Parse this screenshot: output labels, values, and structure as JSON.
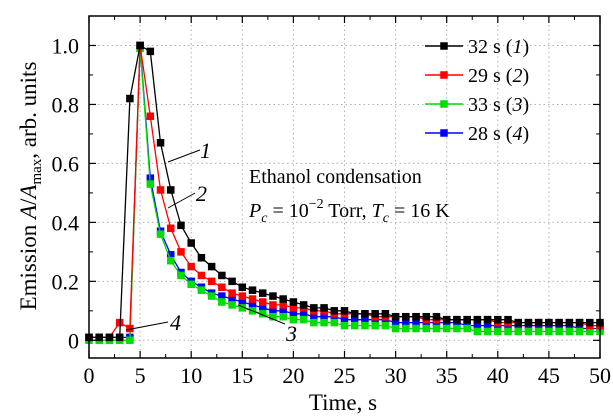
{
  "chart_data": {
    "type": "line",
    "xlabel": "Time, s",
    "ylabel_parts": {
      "prefix": "Emission ",
      "A": "A",
      "slash": "/",
      "A2": "A",
      "sub": "max",
      "suffix": ", arb. units"
    },
    "xlim": [
      0,
      50
    ],
    "ylim": [
      -0.06,
      1.1
    ],
    "xticks": [
      "0",
      "5",
      "10",
      "15",
      "20",
      "25",
      "30",
      "35",
      "40",
      "45",
      "50"
    ],
    "yticks": [
      "0",
      "0.2",
      "0.4",
      "0.6",
      "0.8",
      "1.0"
    ],
    "grid": true,
    "legend_position": "top-right",
    "series": [
      {
        "name": "32 s",
        "tag": "1",
        "color": "#000000",
        "x": [
          0,
          1,
          2,
          3,
          4,
          5,
          6,
          7,
          8,
          9,
          10,
          11,
          12,
          13,
          14,
          15,
          16,
          17,
          18,
          19,
          20,
          21,
          22,
          23,
          24,
          25,
          26,
          27,
          28,
          29,
          30,
          31,
          32,
          33,
          34,
          35,
          36,
          37,
          38,
          39,
          40,
          41,
          42,
          43,
          44,
          45,
          46,
          47,
          48,
          49,
          50
        ],
        "y": [
          0.01,
          0.01,
          0.01,
          0.01,
          0.82,
          1.0,
          0.98,
          0.67,
          0.51,
          0.39,
          0.33,
          0.28,
          0.25,
          0.22,
          0.2,
          0.18,
          0.17,
          0.16,
          0.15,
          0.14,
          0.13,
          0.12,
          0.11,
          0.11,
          0.1,
          0.1,
          0.09,
          0.09,
          0.09,
          0.09,
          0.08,
          0.08,
          0.08,
          0.08,
          0.08,
          0.07,
          0.07,
          0.07,
          0.07,
          0.07,
          0.07,
          0.07,
          0.06,
          0.06,
          0.06,
          0.06,
          0.06,
          0.06,
          0.06,
          0.06,
          0.06
        ]
      },
      {
        "name": "29 s",
        "tag": "2",
        "color": "#ff0000",
        "x": [
          0,
          1,
          2,
          3,
          4,
          5,
          6,
          7,
          8,
          9,
          10,
          11,
          12,
          13,
          14,
          15,
          16,
          17,
          18,
          19,
          20,
          21,
          22,
          23,
          24,
          25,
          26,
          27,
          28,
          29,
          30,
          31,
          32,
          33,
          34,
          35,
          36,
          37,
          38,
          39,
          40,
          41,
          42,
          43,
          44,
          45,
          46,
          47,
          48,
          49,
          50
        ],
        "y": [
          0.01,
          0.01,
          0.01,
          0.06,
          0.04,
          1.0,
          0.76,
          0.51,
          0.38,
          0.3,
          0.25,
          0.22,
          0.2,
          0.18,
          0.16,
          0.15,
          0.14,
          0.13,
          0.12,
          0.12,
          0.11,
          0.11,
          0.1,
          0.1,
          0.09,
          0.09,
          0.09,
          0.09,
          0.08,
          0.08,
          0.08,
          0.08,
          0.08,
          0.07,
          0.07,
          0.07,
          0.07,
          0.07,
          0.07,
          0.07,
          0.06,
          0.06,
          0.06,
          0.06,
          0.06,
          0.06,
          0.06,
          0.06,
          0.06,
          0.05,
          0.05
        ]
      },
      {
        "name": "33 s",
        "tag": "3",
        "color": "#00dd00",
        "x": [
          0,
          1,
          2,
          3,
          4,
          5,
          6,
          7,
          8,
          9,
          10,
          11,
          12,
          13,
          14,
          15,
          16,
          17,
          18,
          19,
          20,
          21,
          22,
          23,
          24,
          25,
          26,
          27,
          28,
          29,
          30,
          31,
          32,
          33,
          34,
          35,
          36,
          37,
          38,
          39,
          40,
          41,
          42,
          43,
          44,
          45,
          46,
          47,
          48,
          49,
          50
        ],
        "y": [
          0.0,
          0.0,
          0.0,
          0.0,
          0.0,
          0.99,
          0.53,
          0.36,
          0.27,
          0.22,
          0.19,
          0.17,
          0.15,
          0.13,
          0.12,
          0.11,
          0.1,
          0.09,
          0.08,
          0.08,
          0.07,
          0.07,
          0.06,
          0.06,
          0.06,
          0.05,
          0.05,
          0.05,
          0.05,
          0.05,
          0.04,
          0.04,
          0.04,
          0.04,
          0.04,
          0.04,
          0.04,
          0.04,
          0.03,
          0.03,
          0.03,
          0.03,
          0.03,
          0.03,
          0.03,
          0.03,
          0.03,
          0.03,
          0.03,
          0.03,
          0.03
        ]
      },
      {
        "name": "28 s",
        "tag": "4",
        "color": "#0000ff",
        "x": [
          0,
          1,
          2,
          3,
          4,
          5,
          6,
          7,
          8,
          9,
          10,
          11,
          12,
          13,
          14,
          15,
          16,
          17,
          18,
          19,
          20,
          21,
          22,
          23,
          24,
          25,
          26,
          27,
          28,
          29,
          30,
          31,
          32,
          33,
          34,
          35,
          36,
          37,
          38,
          39,
          40,
          41,
          42,
          43,
          44,
          45,
          46,
          47,
          48,
          49,
          50
        ],
        "y": [
          0.01,
          0.01,
          0.01,
          0.01,
          0.01,
          1.0,
          0.55,
          0.37,
          0.29,
          0.23,
          0.2,
          0.18,
          0.16,
          0.15,
          0.14,
          0.13,
          0.12,
          0.11,
          0.1,
          0.1,
          0.09,
          0.09,
          0.08,
          0.08,
          0.08,
          0.07,
          0.07,
          0.07,
          0.07,
          0.07,
          0.06,
          0.06,
          0.06,
          0.06,
          0.06,
          0.06,
          0.06,
          0.05,
          0.05,
          0.05,
          0.05,
          0.05,
          0.05,
          0.05,
          0.05,
          0.05,
          0.05,
          0.05,
          0.04,
          0.04,
          0.04
        ]
      }
    ],
    "annotations": {
      "title_line": "Ethanol condensation",
      "conditions": {
        "Pc_sym": "P",
        "Pc_sub": "c",
        "Pc_eq": " = 10",
        "Pc_exp": "−2",
        "Pc_unit": " Torr,  ",
        "Tc_sym": "T",
        "Tc_sub": "c",
        "Tc_eq": " = 16 K"
      },
      "curve_labels": [
        "1",
        "2",
        "3",
        "4"
      ]
    }
  }
}
